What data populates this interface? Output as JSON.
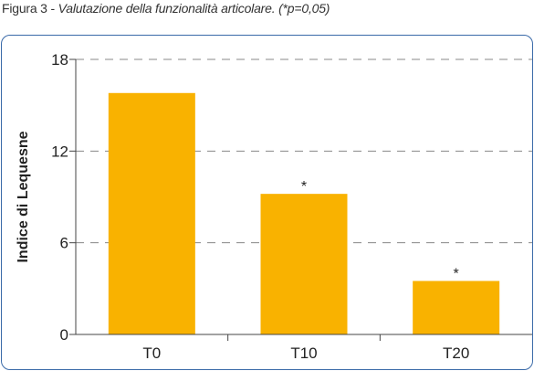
{
  "caption": {
    "label": "Figura 3",
    "separator": " - ",
    "text": "Valutazione della funzionalità articolare. (*p=0,05)"
  },
  "chart_data": {
    "type": "bar",
    "categories": [
      "T0",
      "T10",
      "T20"
    ],
    "values": [
      15.8,
      9.2,
      3.5
    ],
    "annotations": [
      "",
      "*",
      "*"
    ],
    "ylabel": "Indice di Lequesne",
    "xlabel": "",
    "ylim": [
      0,
      18
    ],
    "yticks": [
      0,
      6,
      12,
      18
    ],
    "grid": "dashed horizontal",
    "legend": "none",
    "colors": {
      "bar": "#f9b200",
      "frame": "#3a6aa8",
      "axis": "#444444",
      "grid": "#888888",
      "text": "#222222"
    }
  }
}
